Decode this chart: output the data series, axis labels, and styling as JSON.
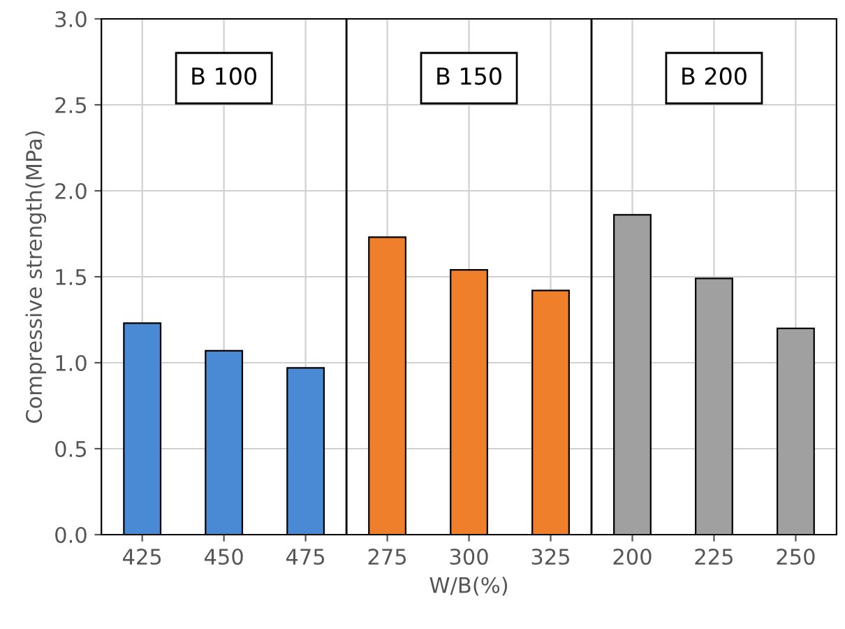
{
  "chart_data": {
    "type": "bar",
    "xlabel": "W/B(%)",
    "ylabel": "Compressive strength(MPa)",
    "categories": [
      "425",
      "450",
      "475",
      "275",
      "300",
      "325",
      "200",
      "225",
      "250"
    ],
    "values": [
      1.23,
      1.07,
      0.97,
      1.73,
      1.54,
      1.42,
      1.86,
      1.49,
      1.2
    ],
    "colors": [
      "#4a8ad4",
      "#4a8ad4",
      "#4a8ad4",
      "#f07f2c",
      "#f07f2c",
      "#f07f2c",
      "#a0a0a0",
      "#a0a0a0",
      "#a0a0a0"
    ],
    "ylim": [
      0,
      3.0
    ],
    "yticks": [
      {
        "value": 0,
        "label": "0.0"
      },
      {
        "value": 0.5,
        "label": "0.5"
      },
      {
        "value": 1.0,
        "label": "1.0"
      },
      {
        "value": 1.5,
        "label": "1.5"
      },
      {
        "value": 2.0,
        "label": "2.0"
      },
      {
        "value": 2.5,
        "label": "2.5"
      },
      {
        "value": 3.0,
        "label": "3.0"
      }
    ],
    "grid": true,
    "bands": [
      {
        "axis": "x",
        "from": "425",
        "to": "475",
        "label": "B 100"
      },
      {
        "axis": "x",
        "from": "275",
        "to": "325",
        "label": "B 150"
      },
      {
        "axis": "x",
        "from": "200",
        "to": "250",
        "label": "B 200"
      }
    ]
  }
}
